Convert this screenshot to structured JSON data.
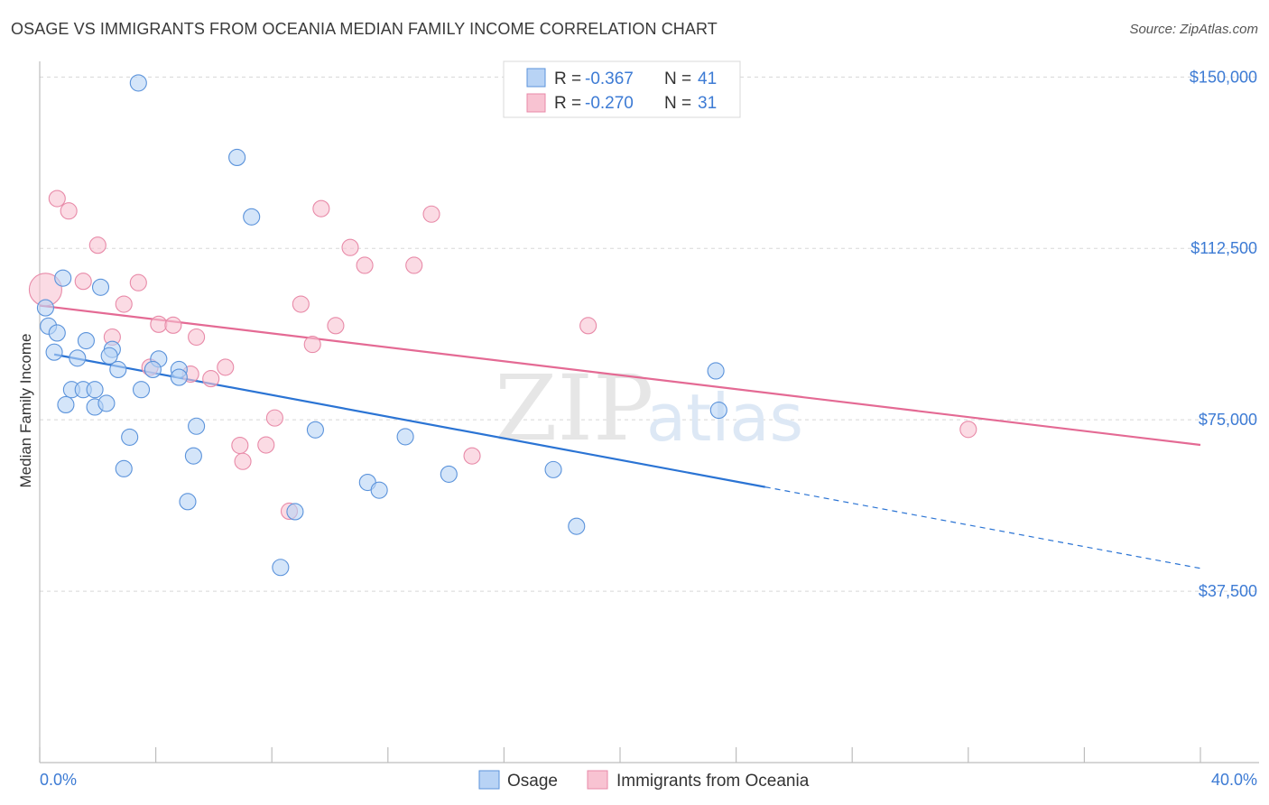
{
  "header": {
    "title": "OSAGE VS IMMIGRANTS FROM OCEANIA MEDIAN FAMILY INCOME CORRELATION CHART",
    "source": "Source: ZipAtlas.com"
  },
  "watermark": {
    "zip": "ZIP",
    "atlas": "atlas"
  },
  "colors": {
    "osage_fill": "#b8d3f5",
    "osage_stroke": "#5b93db",
    "osage_line": "#2b74d4",
    "oceania_fill": "#f8c3d2",
    "oceania_stroke": "#e88aa8",
    "oceania_line": "#e46a94",
    "axis_label": "#3d7bd4",
    "grid": "#d8d8d8"
  },
  "legend": {
    "rows": [
      {
        "r_label": "R =",
        "r_value": "-0.367",
        "n_label": "N =",
        "n_value": "41"
      },
      {
        "r_label": "R =",
        "r_value": "-0.270",
        "n_label": "N =",
        "n_value": "31"
      }
    ]
  },
  "bottom_legend": {
    "series1": "Osage",
    "series2": "Immigrants from Oceania"
  },
  "chart_data": {
    "type": "scatter",
    "title": "OSAGE VS IMMIGRANTS FROM OCEANIA MEDIAN FAMILY INCOME CORRELATION CHART",
    "xlabel": "",
    "ylabel": "Median Family Income",
    "xlim": [
      0,
      40
    ],
    "ylim": [
      0,
      155000
    ],
    "x_tick_labels": [
      "0.0%",
      "40.0%"
    ],
    "y_ticks": [
      37500,
      75000,
      112500,
      150000
    ],
    "y_tick_labels": [
      "$37,500",
      "$75,000",
      "$112,500",
      "$150,000"
    ],
    "grid": true,
    "series": [
      {
        "name": "Osage",
        "r": -0.367,
        "n": 41,
        "trend": {
          "x0": 0.5,
          "y0": 89300,
          "x_solid_end": 25.0,
          "y_solid_end": 60300,
          "x_end": 40.0,
          "y_end": 42500
        },
        "points": [
          {
            "x": 3.4,
            "y": 148700
          },
          {
            "x": 6.8,
            "y": 132400
          },
          {
            "x": 7.3,
            "y": 119400
          },
          {
            "x": 0.8,
            "y": 106000
          },
          {
            "x": 2.1,
            "y": 104000
          },
          {
            "x": 0.2,
            "y": 99500
          },
          {
            "x": 0.3,
            "y": 95500
          },
          {
            "x": 0.6,
            "y": 94000
          },
          {
            "x": 1.6,
            "y": 92300
          },
          {
            "x": 2.5,
            "y": 90400
          },
          {
            "x": 0.5,
            "y": 89800
          },
          {
            "x": 1.3,
            "y": 88500
          },
          {
            "x": 2.4,
            "y": 89000
          },
          {
            "x": 4.1,
            "y": 88300
          },
          {
            "x": 2.7,
            "y": 86000
          },
          {
            "x": 3.9,
            "y": 86000
          },
          {
            "x": 4.8,
            "y": 86000
          },
          {
            "x": 4.8,
            "y": 84300
          },
          {
            "x": 1.1,
            "y": 81600
          },
          {
            "x": 1.5,
            "y": 81600
          },
          {
            "x": 1.9,
            "y": 81600
          },
          {
            "x": 3.5,
            "y": 81600
          },
          {
            "x": 0.9,
            "y": 78300
          },
          {
            "x": 1.9,
            "y": 77800
          },
          {
            "x": 2.3,
            "y": 78600
          },
          {
            "x": 5.4,
            "y": 73600
          },
          {
            "x": 9.5,
            "y": 72800
          },
          {
            "x": 3.1,
            "y": 71200
          },
          {
            "x": 12.6,
            "y": 71300
          },
          {
            "x": 5.3,
            "y": 67100
          },
          {
            "x": 2.9,
            "y": 64300
          },
          {
            "x": 14.1,
            "y": 63100
          },
          {
            "x": 17.7,
            "y": 64100
          },
          {
            "x": 11.3,
            "y": 61300
          },
          {
            "x": 11.7,
            "y": 59600
          },
          {
            "x": 5.1,
            "y": 57100
          },
          {
            "x": 8.8,
            "y": 54900
          },
          {
            "x": 18.5,
            "y": 51700
          },
          {
            "x": 8.3,
            "y": 42700
          },
          {
            "x": 23.3,
            "y": 85700
          },
          {
            "x": 23.4,
            "y": 77100
          }
        ]
      },
      {
        "name": "Immigrants from Oceania",
        "r": -0.27,
        "n": 31,
        "trend": {
          "x0": 0.0,
          "y0": 100000,
          "x_end": 40.0,
          "y_end": 69500
        },
        "points": [
          {
            "x": 0.2,
            "y": 103500
          },
          {
            "x": 0.6,
            "y": 123400
          },
          {
            "x": 1.0,
            "y": 120700
          },
          {
            "x": 2.0,
            "y": 113200
          },
          {
            "x": 1.5,
            "y": 105300
          },
          {
            "x": 3.4,
            "y": 105000
          },
          {
            "x": 2.9,
            "y": 100300
          },
          {
            "x": 4.1,
            "y": 95900
          },
          {
            "x": 4.6,
            "y": 95700
          },
          {
            "x": 2.5,
            "y": 93100
          },
          {
            "x": 5.4,
            "y": 93100
          },
          {
            "x": 3.8,
            "y": 86500
          },
          {
            "x": 6.4,
            "y": 86500
          },
          {
            "x": 5.2,
            "y": 85000
          },
          {
            "x": 5.9,
            "y": 84000
          },
          {
            "x": 9.7,
            "y": 121200
          },
          {
            "x": 13.5,
            "y": 120000
          },
          {
            "x": 10.7,
            "y": 112700
          },
          {
            "x": 11.2,
            "y": 108800
          },
          {
            "x": 12.9,
            "y": 108800
          },
          {
            "x": 9.0,
            "y": 100300
          },
          {
            "x": 10.2,
            "y": 95600
          },
          {
            "x": 9.4,
            "y": 91500
          },
          {
            "x": 18.9,
            "y": 95600
          },
          {
            "x": 8.1,
            "y": 75400
          },
          {
            "x": 6.9,
            "y": 69400
          },
          {
            "x": 7.8,
            "y": 69500
          },
          {
            "x": 7.0,
            "y": 65900
          },
          {
            "x": 14.9,
            "y": 67100
          },
          {
            "x": 8.6,
            "y": 55000
          },
          {
            "x": 32.0,
            "y": 72900
          }
        ]
      }
    ]
  }
}
